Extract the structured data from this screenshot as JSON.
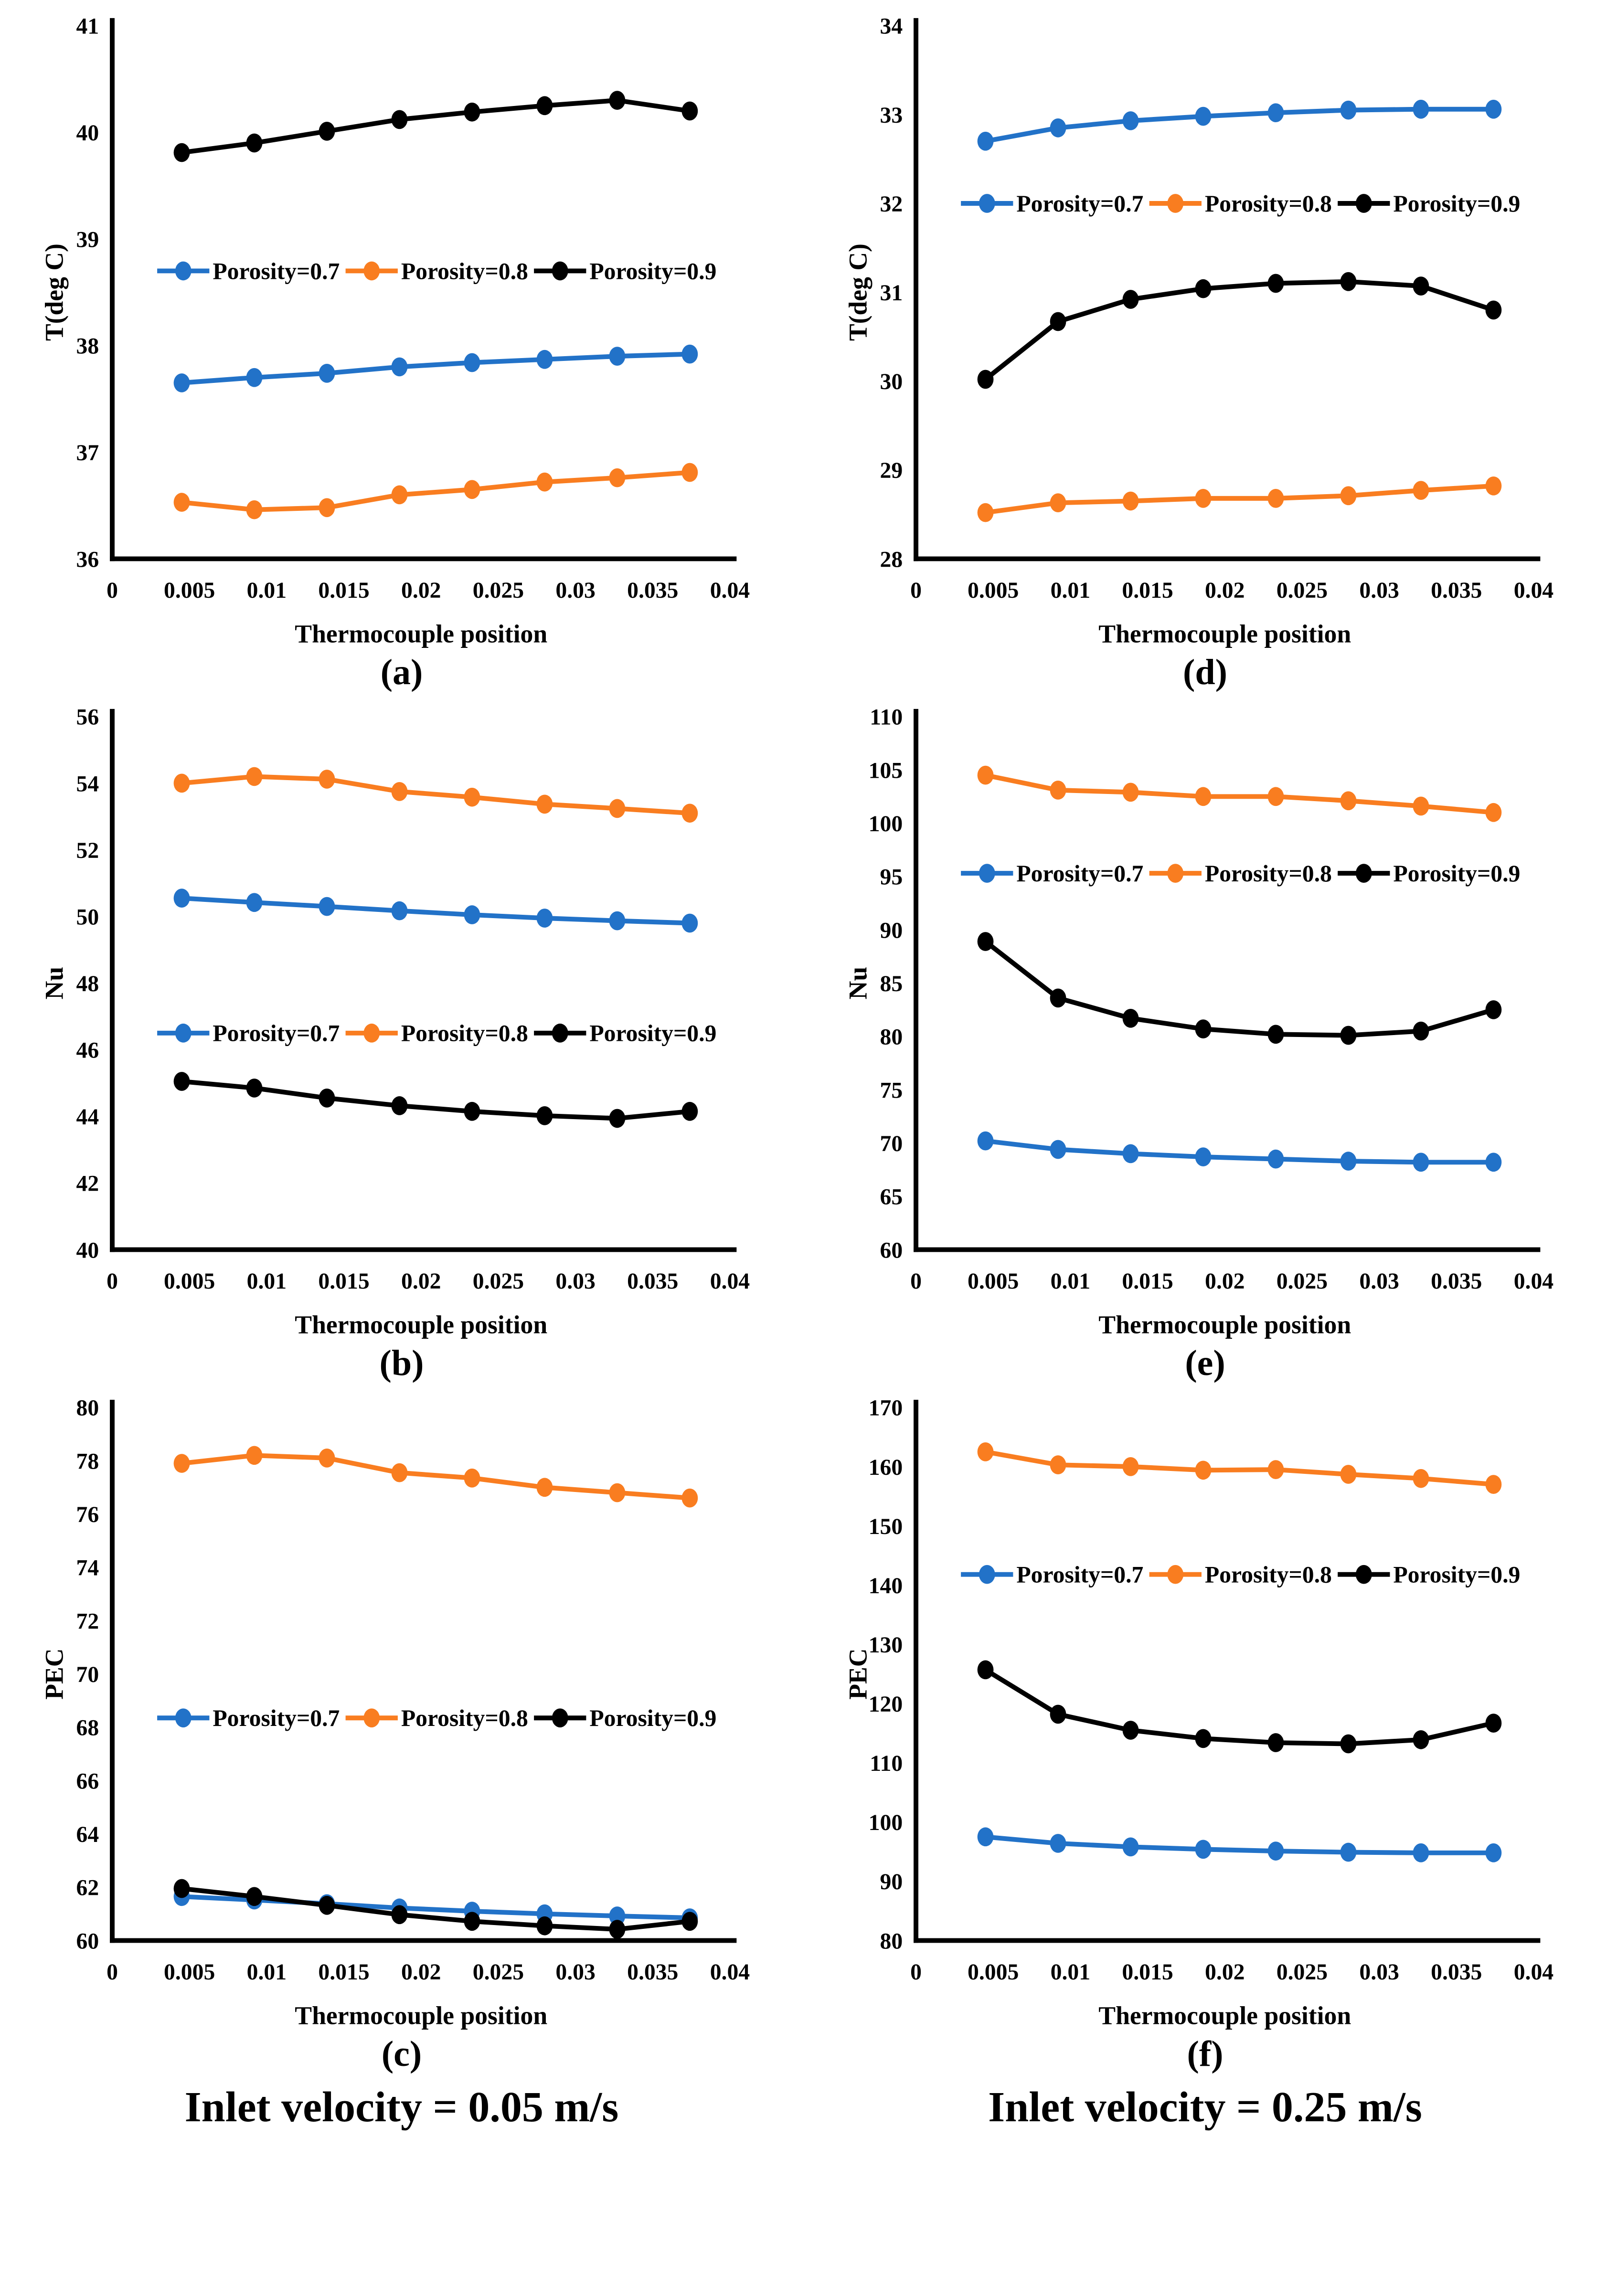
{
  "figure": {
    "columns": [
      {
        "velocity_label": "Inlet velocity = 0.05 m/s"
      },
      {
        "velocity_label": "Inlet velocity = 0.25 m/s"
      }
    ]
  },
  "series_colors": {
    "porosity_07": "#2272C8",
    "porosity_08": "#F97D20",
    "porosity_09": "#000000"
  },
  "axes_shared": {
    "x_label": "Thermocouple position",
    "x_min": 0,
    "x_max": 0.04,
    "x_tick_labels": [
      "0",
      "0.005",
      "0.01",
      "0.015",
      "0.02",
      "0.025",
      "0.03",
      "0.035",
      "0.04"
    ],
    "x_values": [
      0.0045,
      0.0092,
      0.0139,
      0.0186,
      0.0233,
      0.028,
      0.0327,
      0.0374
    ],
    "grid": "off",
    "legend_position": "inside-plot"
  },
  "chart_data": [
    {
      "panel": "a",
      "caption": "(a)",
      "type": "line",
      "xlabel": "Thermocouple position",
      "ylabel": "T(deg C)",
      "ylim": [
        36,
        41
      ],
      "ytick_step": 1,
      "legend_y": 38.7,
      "series": [
        {
          "name": "Porosity=0.7",
          "color": "#2272C8",
          "values": [
            37.65,
            37.7,
            37.74,
            37.8,
            37.84,
            37.87,
            37.9,
            37.92
          ]
        },
        {
          "name": "Porosity=0.8",
          "color": "#F97D20",
          "values": [
            36.53,
            36.46,
            36.48,
            36.6,
            36.65,
            36.72,
            36.76,
            36.81
          ]
        },
        {
          "name": "Porosity=0.9",
          "color": "#000000",
          "values": [
            39.81,
            39.9,
            40.01,
            40.12,
            40.19,
            40.25,
            40.3,
            40.2
          ]
        }
      ]
    },
    {
      "panel": "b",
      "caption": "(b)",
      "type": "line",
      "xlabel": "Thermocouple position",
      "ylabel": "Nu",
      "ylim": [
        40,
        56
      ],
      "ytick_step": 2,
      "legend_y": 46.5,
      "series": [
        {
          "name": "Porosity=0.7",
          "color": "#2272C8",
          "values": [
            50.55,
            50.42,
            50.3,
            50.17,
            50.05,
            49.95,
            49.87,
            49.8
          ]
        },
        {
          "name": "Porosity=0.8",
          "color": "#F97D20",
          "values": [
            54.0,
            54.2,
            54.12,
            53.75,
            53.58,
            53.37,
            53.24,
            53.1
          ]
        },
        {
          "name": "Porosity=0.9",
          "color": "#000000",
          "values": [
            45.05,
            44.85,
            44.55,
            44.32,
            44.15,
            44.02,
            43.94,
            44.15
          ]
        }
      ]
    },
    {
      "panel": "c",
      "caption": "(c)",
      "type": "line",
      "xlabel": "Thermocouple position",
      "ylabel": "PEC",
      "ylim": [
        60,
        80
      ],
      "ytick_step": 2,
      "legend_y": 68.35,
      "series": [
        {
          "name": "Porosity=0.7",
          "color": "#2272C8",
          "values": [
            61.65,
            61.52,
            61.38,
            61.22,
            61.1,
            61.0,
            60.92,
            60.85
          ]
        },
        {
          "name": "Porosity=0.8",
          "color": "#F97D20",
          "values": [
            77.9,
            78.2,
            78.1,
            77.55,
            77.35,
            77.0,
            76.8,
            76.6
          ]
        },
        {
          "name": "Porosity=0.9",
          "color": "#000000",
          "values": [
            61.95,
            61.65,
            61.32,
            60.97,
            60.72,
            60.55,
            60.42,
            60.72
          ]
        }
      ]
    },
    {
      "panel": "d",
      "caption": "(d)",
      "type": "line",
      "xlabel": "Thermocouple position",
      "ylabel": "T(deg C)",
      "ylim": [
        28,
        34
      ],
      "ytick_step": 1,
      "legend_y": 32.0,
      "series": [
        {
          "name": "Porosity=0.7",
          "color": "#2272C8",
          "values": [
            32.7,
            32.85,
            32.93,
            32.98,
            33.02,
            33.05,
            33.06,
            33.06
          ]
        },
        {
          "name": "Porosity=0.8",
          "color": "#F97D20",
          "values": [
            28.52,
            28.63,
            28.65,
            28.68,
            28.68,
            28.71,
            28.77,
            28.82
          ]
        },
        {
          "name": "Porosity=0.9",
          "color": "#000000",
          "values": [
            30.02,
            30.67,
            30.92,
            31.04,
            31.1,
            31.12,
            31.07,
            30.8
          ]
        }
      ]
    },
    {
      "panel": "e",
      "caption": "(e)",
      "type": "line",
      "xlabel": "Thermocouple position",
      "ylabel": "Nu",
      "ylim": [
        60,
        110
      ],
      "ytick_step": 5,
      "legend_y": 95.3,
      "series": [
        {
          "name": "Porosity=0.7",
          "color": "#2272C8",
          "values": [
            70.2,
            69.4,
            69.0,
            68.7,
            68.5,
            68.3,
            68.2,
            68.2
          ]
        },
        {
          "name": "Porosity=0.8",
          "color": "#F97D20",
          "values": [
            104.5,
            103.1,
            102.9,
            102.5,
            102.5,
            102.1,
            101.6,
            101.0
          ]
        },
        {
          "name": "Porosity=0.9",
          "color": "#000000",
          "values": [
            88.9,
            83.6,
            81.7,
            80.7,
            80.2,
            80.1,
            80.5,
            82.5
          ]
        }
      ]
    },
    {
      "panel": "f",
      "caption": "(f)",
      "type": "line",
      "xlabel": "Thermocouple position",
      "ylabel": "PEC",
      "ylim": [
        80,
        170
      ],
      "ytick_step": 10,
      "legend_y": 141.8,
      "series": [
        {
          "name": "Porosity=0.7",
          "color": "#2272C8",
          "values": [
            97.5,
            96.4,
            95.8,
            95.4,
            95.1,
            94.9,
            94.8,
            94.8
          ]
        },
        {
          "name": "Porosity=0.8",
          "color": "#F97D20",
          "values": [
            162.5,
            160.3,
            160.0,
            159.4,
            159.5,
            158.7,
            158.0,
            157.0
          ]
        },
        {
          "name": "Porosity=0.9",
          "color": "#000000",
          "values": [
            125.7,
            118.2,
            115.5,
            114.1,
            113.4,
            113.2,
            113.9,
            116.7
          ]
        }
      ]
    }
  ]
}
